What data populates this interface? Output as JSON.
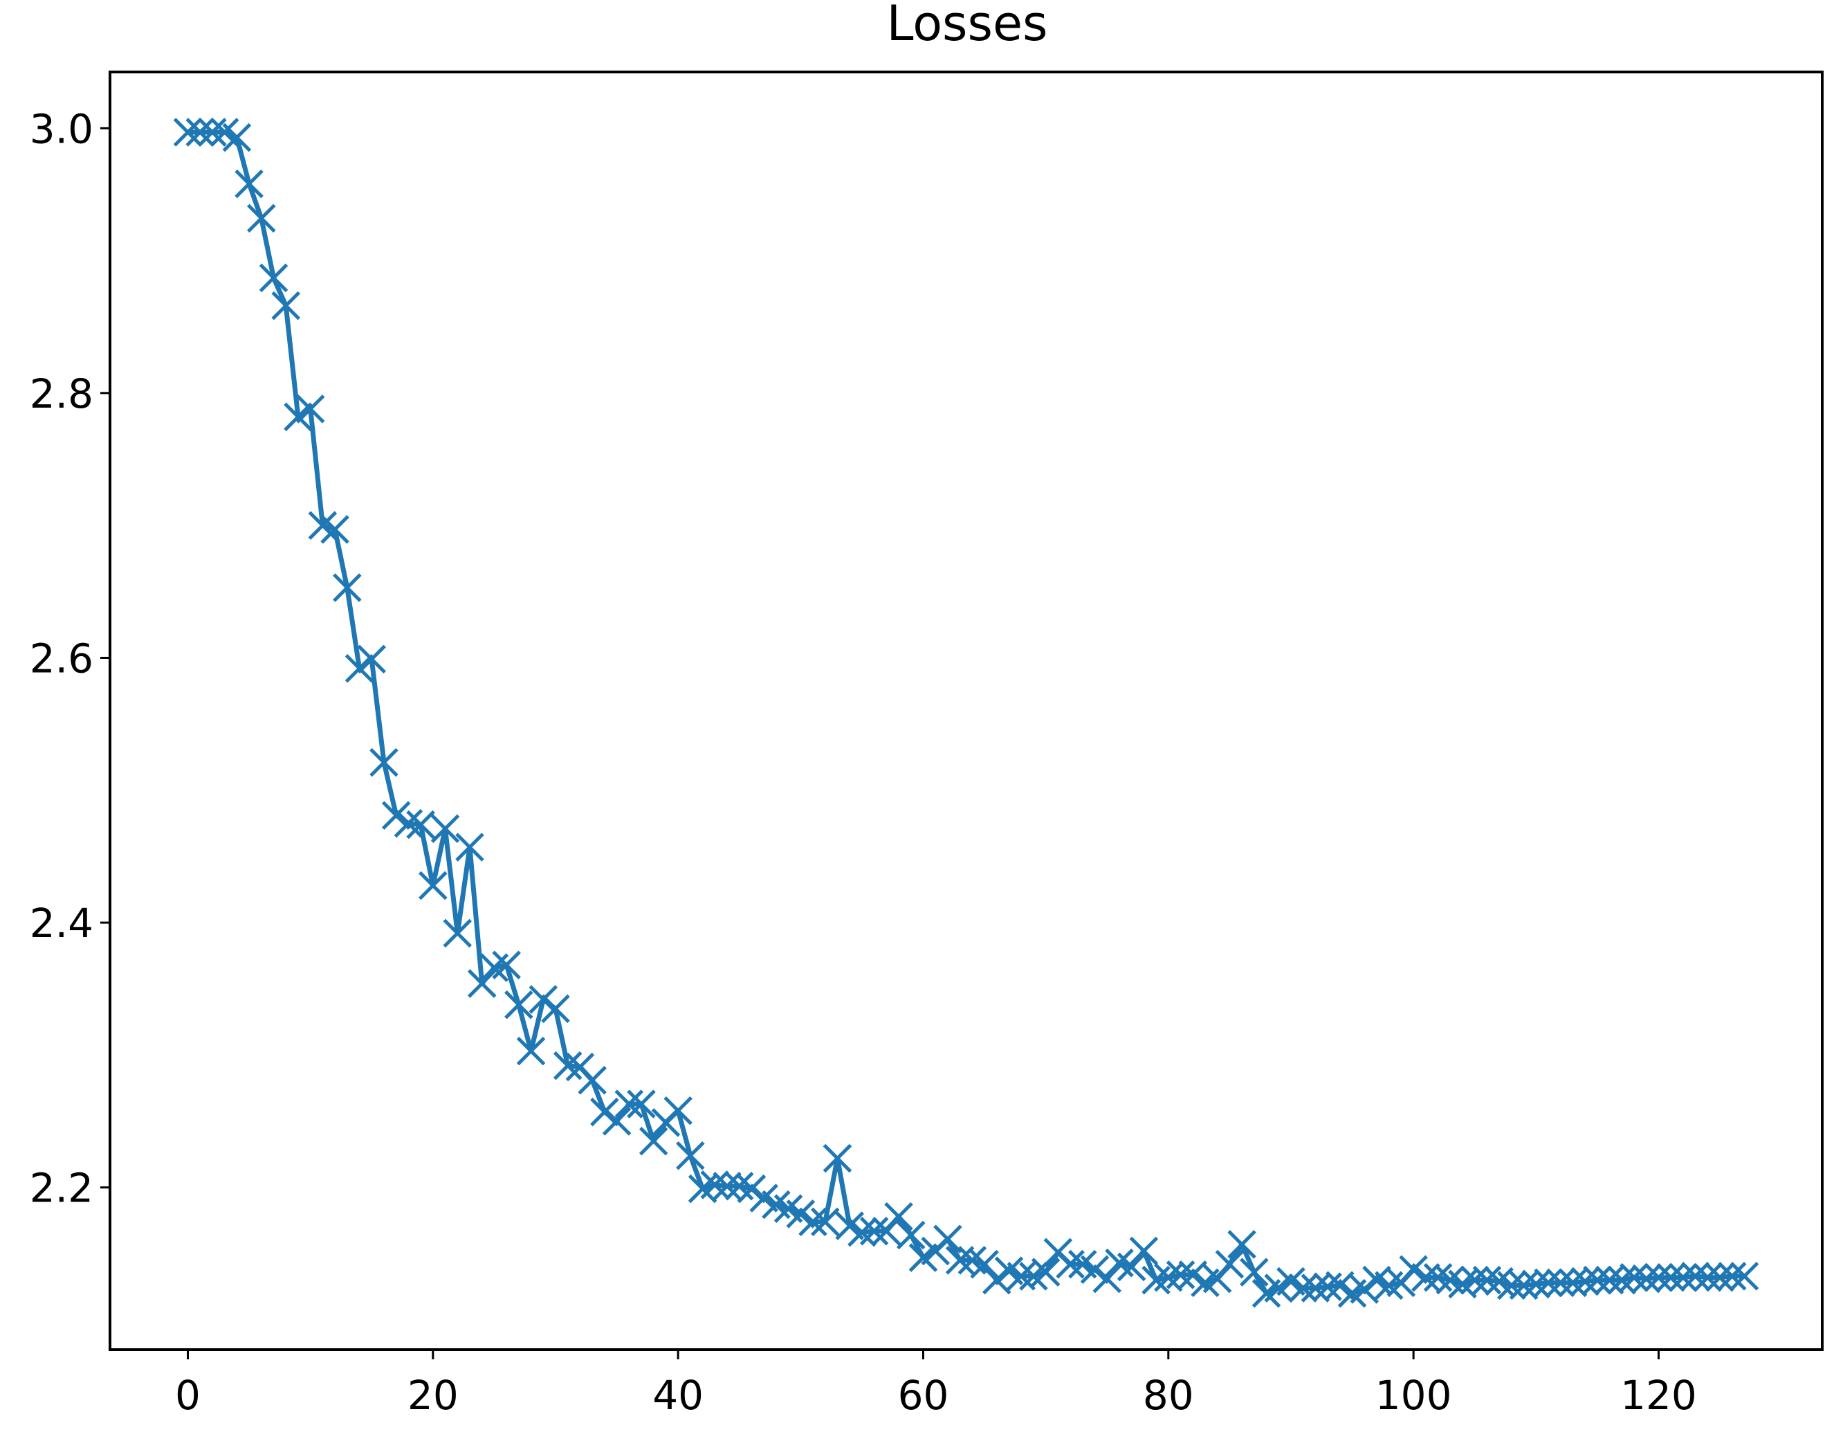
{
  "chart_data": {
    "type": "line",
    "title": "Losses",
    "xlabel": "",
    "ylabel": "",
    "xlim": [
      -6.35,
      133.35
    ],
    "ylim": [
      2.0775,
      3.0425
    ],
    "xticks": [
      0,
      20,
      40,
      60,
      80,
      100,
      120
    ],
    "yticks": [
      2.2,
      2.4,
      2.6,
      2.8,
      3.0
    ],
    "xtick_labels": [
      "0",
      "20",
      "40",
      "60",
      "80",
      "100",
      "120"
    ],
    "ytick_labels": [
      "2.2",
      "2.4",
      "2.6",
      "2.8",
      "3.0"
    ],
    "grid": false,
    "marker": "x",
    "color": "#1f77b4",
    "x": [
      0,
      1,
      2,
      3,
      4,
      5,
      6,
      7,
      8,
      9,
      10,
      11,
      12,
      13,
      14,
      15,
      16,
      17,
      18,
      19,
      20,
      21,
      22,
      23,
      24,
      25,
      26,
      27,
      28,
      29,
      30,
      31,
      32,
      33,
      34,
      35,
      36,
      37,
      38,
      39,
      40,
      41,
      42,
      43,
      44,
      45,
      46,
      47,
      48,
      49,
      50,
      51,
      52,
      53,
      54,
      55,
      56,
      57,
      58,
      59,
      60,
      61,
      62,
      63,
      64,
      65,
      66,
      67,
      68,
      69,
      70,
      71,
      72,
      73,
      74,
      75,
      76,
      77,
      78,
      79,
      80,
      81,
      82,
      83,
      84,
      85,
      86,
      87,
      88,
      89,
      90,
      91,
      92,
      93,
      94,
      95,
      96,
      97,
      98,
      99,
      100,
      101,
      102,
      103,
      104,
      105,
      106,
      107,
      108,
      109,
      110,
      111,
      112,
      113,
      114,
      115,
      116,
      117,
      118,
      119,
      120,
      121,
      122,
      123,
      124,
      125,
      126,
      127
    ],
    "y": [
      2.997,
      2.997,
      2.997,
      2.997,
      2.993,
      2.958,
      2.932,
      2.887,
      2.866,
      2.782,
      2.788,
      2.7,
      2.697,
      2.653,
      2.592,
      2.599,
      2.521,
      2.481,
      2.475,
      2.474,
      2.428,
      2.471,
      2.392,
      2.457,
      2.354,
      2.366,
      2.368,
      2.338,
      2.303,
      2.342,
      2.335,
      2.292,
      2.291,
      2.281,
      2.257,
      2.25,
      2.263,
      2.263,
      2.235,
      2.249,
      2.258,
      2.224,
      2.199,
      2.202,
      2.201,
      2.201,
      2.199,
      2.192,
      2.187,
      2.184,
      2.18,
      2.174,
      2.174,
      2.222,
      2.171,
      2.166,
      2.167,
      2.167,
      2.178,
      2.164,
      2.147,
      2.152,
      2.161,
      2.145,
      2.145,
      2.142,
      2.13,
      2.137,
      2.133,
      2.133,
      2.136,
      2.151,
      2.142,
      2.142,
      2.138,
      2.131,
      2.143,
      2.14,
      2.152,
      2.13,
      2.132,
      2.134,
      2.134,
      2.128,
      2.131,
      2.142,
      2.157,
      2.136,
      2.12,
      2.124,
      2.129,
      2.124,
      2.124,
      2.125,
      2.126,
      2.12,
      2.123,
      2.13,
      2.126,
      2.128,
      2.138,
      2.132,
      2.132,
      2.13,
      2.127,
      2.13,
      2.13,
      2.129,
      2.126,
      2.126,
      2.127,
      2.128,
      2.128,
      2.128,
      2.129,
      2.13,
      2.13,
      2.13,
      2.132,
      2.131,
      2.132,
      2.132,
      2.132,
      2.133,
      2.132,
      2.132,
      2.133,
      2.133
    ]
  }
}
